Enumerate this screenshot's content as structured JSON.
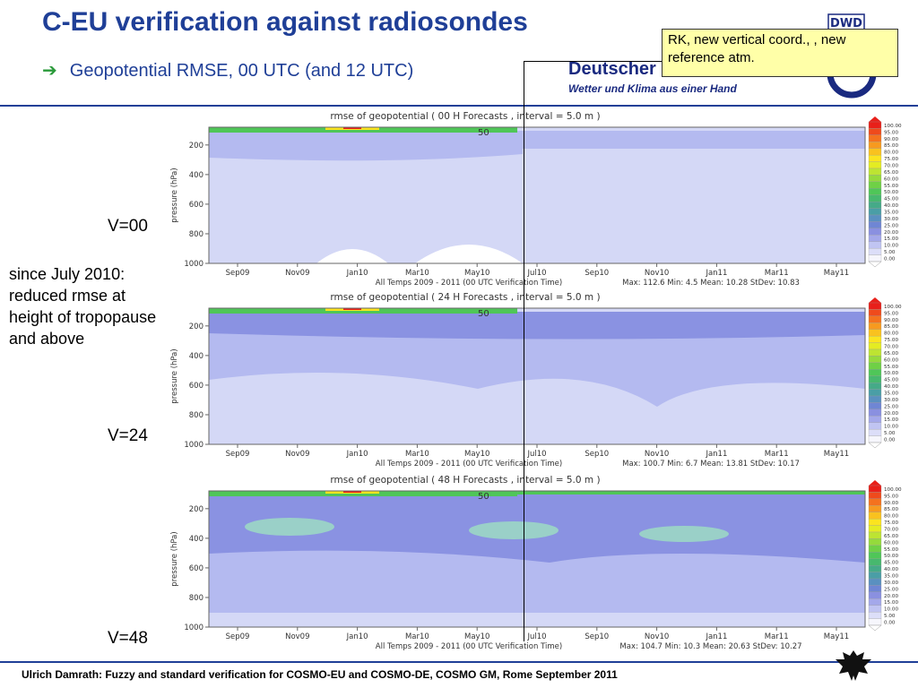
{
  "header": {
    "title": "C-EU verification against radiosondes",
    "subtitle": "Geopotential RMSE, 00 UTC (and 12 UTC)",
    "note": "RK, new vertical coord., , new reference atm.",
    "dwd_name": "Deutscher",
    "dwd_tagline": "Wetter und Klima aus einer Hand",
    "dwd_logo_text": "DWD"
  },
  "side": {
    "labels": [
      "V=00",
      "V=24",
      "V=48"
    ],
    "note": "since July 2010: reduced rmse at height of tropopause and above"
  },
  "footer": "Ulrich Damrath: Fuzzy and standard verification for COSMO-EU and COSMO-DE, COSMO GM, Rome September 2011",
  "chart_data": [
    {
      "type": "heatmap",
      "title": "rmse of geopotential ( 00 H Forecasts   , interval = 5.0 m )",
      "xlabel": "All Temps 2009 - 2011   (00 UTC Verification Time)",
      "ylabel": "pressure (hPa)",
      "x_ticks": [
        "Sep09",
        "Nov09",
        "Jan10",
        "Mar10",
        "May10",
        "Jul10",
        "Sep10",
        "Nov10",
        "Jan11",
        "Mar11",
        "May11"
      ],
      "y_ticks": [
        200,
        400,
        600,
        800,
        1000
      ],
      "ylim": [
        1000,
        80
      ],
      "contour_label": "50",
      "stats": "Max: 112.6   Min: 4.5   Mean: 10.28   StDev: 10.83"
    },
    {
      "type": "heatmap",
      "title": "rmse of geopotential ( 24 H Forecasts   , interval = 5.0 m )",
      "xlabel": "All Temps 2009 - 2011   (00 UTC Verification Time)",
      "ylabel": "pressure (hPa)",
      "x_ticks": [
        "Sep09",
        "Nov09",
        "Jan10",
        "Mar10",
        "May10",
        "Jul10",
        "Sep10",
        "Nov10",
        "Jan11",
        "Mar11",
        "May11"
      ],
      "y_ticks": [
        200,
        400,
        600,
        800,
        1000
      ],
      "ylim": [
        1000,
        80
      ],
      "contour_label": "50",
      "stats": "Max: 100.7   Min: 6.7   Mean: 13.81   StDev: 10.17"
    },
    {
      "type": "heatmap",
      "title": "rmse of geopotential ( 48 H Forecasts   , interval = 5.0 m )",
      "xlabel": "All Temps 2009 - 2011   (00 UTC Verification Time)",
      "ylabel": "pressure (hPa)",
      "x_ticks": [
        "Sep09",
        "Nov09",
        "Jan10",
        "Mar10",
        "May10",
        "Jul10",
        "Sep10",
        "Nov10",
        "Jan11",
        "Mar11",
        "May11"
      ],
      "y_ticks": [
        200,
        400,
        600,
        800,
        1000
      ],
      "ylim": [
        1000,
        80
      ],
      "contour_label": "50",
      "stats": "Max: 104.7   Min: 10.3   Mean: 20.63   StDev: 10.27"
    }
  ],
  "colorbar": {
    "labels": [
      "100.00",
      "95.00",
      "90.00",
      "85.00",
      "80.00",
      "75.00",
      "70.00",
      "65.00",
      "60.00",
      "55.00",
      "50.00",
      "45.00",
      "40.00",
      "35.00",
      "30.00",
      "25.00",
      "20.00",
      "15.00",
      "10.00",
      "5.00",
      "0.00"
    ],
    "colors": [
      "#e8201a",
      "#ef4a1c",
      "#f4721e",
      "#f79a1f",
      "#f9c21f",
      "#fbe41f",
      "#e4ec22",
      "#bde432",
      "#95da3c",
      "#6fd046",
      "#4fc658",
      "#47b86e",
      "#45aa88",
      "#4a9ea6",
      "#5a90c0",
      "#6f86d4",
      "#8a90e0",
      "#a4a8ea",
      "#c0c4f2",
      "#dcdef8",
      "#f6f6fc"
    ]
  },
  "colors": {
    "title_blue": "#1f3f97",
    "note_yellow": "#ffffa8",
    "field_light": "#d4d8f6",
    "field_mid": "#b4baf0",
    "field_dark": "#8a92e2"
  }
}
